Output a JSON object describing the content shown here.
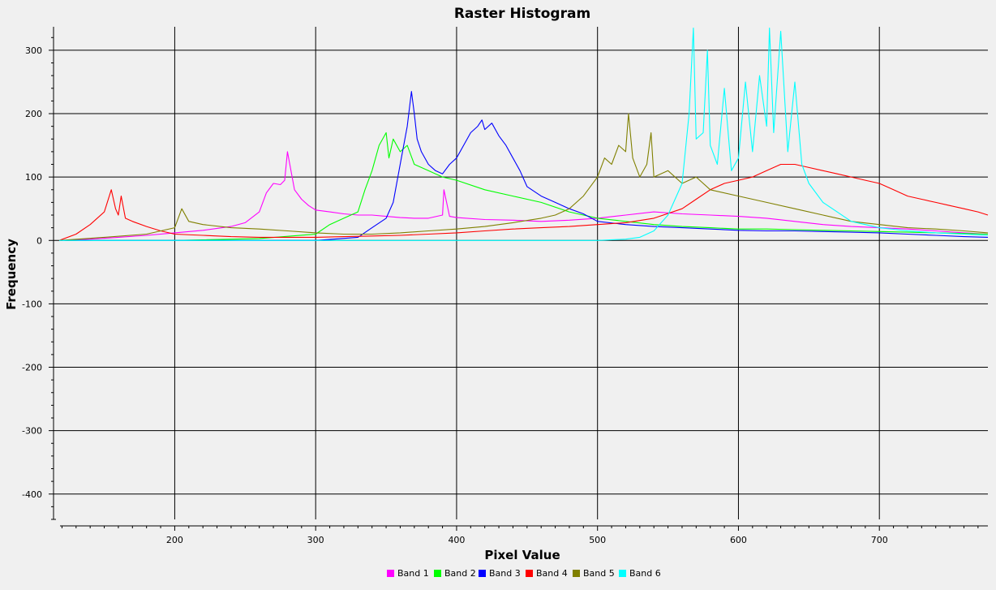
{
  "chart_data": {
    "type": "line",
    "title": "Raster Histogram",
    "xlabel": "Pixel Value",
    "ylabel": "Frequency",
    "xlim": [
      114,
      777
    ],
    "ylim": [
      -440,
      337
    ],
    "x_ticks": [
      200,
      300,
      400,
      500,
      600,
      700
    ],
    "y_ticks": [
      -400,
      -300,
      -200,
      -100,
      0,
      100,
      200,
      300
    ],
    "grid": true,
    "legend_position": "bottom",
    "series": [
      {
        "name": "Band 1",
        "color": "#ff00ff",
        "x": [
          118,
          140,
          160,
          180,
          200,
          220,
          240,
          250,
          260,
          265,
          270,
          275,
          278,
          280,
          285,
          290,
          295,
          300,
          310,
          320,
          330,
          340,
          350,
          360,
          370,
          380,
          390,
          391,
          395,
          400,
          420,
          440,
          460,
          480,
          500,
          520,
          540,
          560,
          580,
          600,
          620,
          640,
          660,
          680,
          700,
          720,
          740,
          760,
          777
        ],
        "y": [
          0,
          2,
          5,
          8,
          12,
          16,
          22,
          28,
          45,
          75,
          90,
          88,
          95,
          140,
          80,
          65,
          55,
          48,
          45,
          42,
          40,
          40,
          38,
          36,
          35,
          35,
          40,
          80,
          38,
          36,
          33,
          32,
          30,
          32,
          35,
          40,
          45,
          42,
          40,
          38,
          35,
          30,
          25,
          22,
          20,
          18,
          15,
          12,
          10
        ]
      },
      {
        "name": "Band 2",
        "color": "#00ff00",
        "x": [
          118,
          200,
          260,
          300,
          310,
          320,
          330,
          335,
          340,
          345,
          350,
          352,
          355,
          360,
          365,
          370,
          380,
          390,
          400,
          420,
          440,
          460,
          480,
          500,
          520,
          540,
          560,
          580,
          600,
          620,
          640,
          660,
          680,
          700,
          720,
          740,
          760,
          777
        ],
        "y": [
          0,
          0,
          3,
          10,
          25,
          35,
          45,
          80,
          110,
          150,
          170,
          130,
          160,
          140,
          150,
          120,
          110,
          100,
          95,
          80,
          70,
          60,
          45,
          35,
          30,
          25,
          22,
          20,
          18,
          18,
          17,
          16,
          15,
          14,
          13,
          12,
          11,
          10
        ]
      },
      {
        "name": "Band 3",
        "color": "#0000ff",
        "x": [
          118,
          300,
          330,
          340,
          350,
          355,
          360,
          365,
          368,
          370,
          372,
          375,
          380,
          385,
          390,
          395,
          400,
          405,
          410,
          415,
          418,
          420,
          425,
          430,
          435,
          440,
          445,
          450,
          460,
          470,
          480,
          490,
          500,
          520,
          540,
          560,
          580,
          600,
          620,
          640,
          660,
          680,
          700,
          720,
          740,
          760,
          777
        ],
        "y": [
          0,
          0,
          5,
          20,
          35,
          60,
          120,
          180,
          235,
          200,
          160,
          140,
          120,
          110,
          105,
          120,
          130,
          150,
          170,
          180,
          190,
          175,
          185,
          165,
          150,
          130,
          110,
          85,
          70,
          60,
          50,
          42,
          30,
          25,
          22,
          20,
          18,
          16,
          15,
          15,
          14,
          13,
          12,
          10,
          8,
          6,
          5
        ]
      },
      {
        "name": "Band 4",
        "color": "#ff0000",
        "x": [
          118,
          130,
          140,
          150,
          155,
          158,
          160,
          162,
          165,
          170,
          180,
          190,
          200,
          220,
          240,
          260,
          280,
          300,
          320,
          340,
          360,
          380,
          400,
          420,
          440,
          460,
          480,
          500,
          520,
          540,
          560,
          570,
          580,
          590,
          600,
          610,
          620,
          630,
          640,
          650,
          660,
          670,
          680,
          690,
          700,
          710,
          720,
          730,
          740,
          750,
          760,
          770,
          777
        ],
        "y": [
          0,
          10,
          25,
          45,
          80,
          50,
          40,
          70,
          35,
          30,
          22,
          15,
          10,
          8,
          6,
          5,
          5,
          5,
          6,
          7,
          8,
          10,
          12,
          15,
          18,
          20,
          22,
          25,
          28,
          35,
          50,
          65,
          80,
          90,
          95,
          100,
          110,
          120,
          120,
          115,
          110,
          105,
          100,
          95,
          90,
          80,
          70,
          65,
          60,
          55,
          50,
          45,
          40
        ]
      },
      {
        "name": "Band 5",
        "color": "#808000",
        "x": [
          118,
          150,
          180,
          200,
          205,
          210,
          220,
          240,
          260,
          280,
          300,
          320,
          340,
          360,
          380,
          400,
          420,
          440,
          460,
          470,
          480,
          490,
          500,
          505,
          510,
          515,
          520,
          522,
          525,
          530,
          535,
          538,
          540,
          550,
          560,
          570,
          580,
          600,
          620,
          640,
          660,
          680,
          700,
          720,
          740,
          760,
          777
        ],
        "y": [
          0,
          5,
          10,
          20,
          50,
          30,
          25,
          20,
          18,
          15,
          12,
          10,
          10,
          12,
          15,
          18,
          22,
          28,
          35,
          40,
          50,
          70,
          100,
          130,
          120,
          150,
          140,
          200,
          130,
          100,
          120,
          170,
          100,
          110,
          90,
          100,
          80,
          70,
          60,
          50,
          40,
          30,
          25,
          20,
          18,
          15,
          12
        ]
      },
      {
        "name": "Band 6",
        "color": "#00ffff",
        "x": [
          118,
          500,
          520,
          530,
          540,
          550,
          560,
          565,
          568,
          570,
          575,
          578,
          580,
          585,
          590,
          595,
          600,
          605,
          610,
          615,
          620,
          622,
          625,
          630,
          635,
          640,
          645,
          650,
          660,
          670,
          680,
          690,
          700,
          720,
          740,
          760,
          777
        ],
        "y": [
          0,
          0,
          2,
          5,
          15,
          40,
          90,
          200,
          335,
          160,
          170,
          300,
          150,
          120,
          240,
          110,
          130,
          250,
          140,
          260,
          180,
          335,
          170,
          330,
          140,
          250,
          120,
          90,
          60,
          45,
          30,
          25,
          20,
          15,
          12,
          10,
          8
        ]
      }
    ]
  }
}
